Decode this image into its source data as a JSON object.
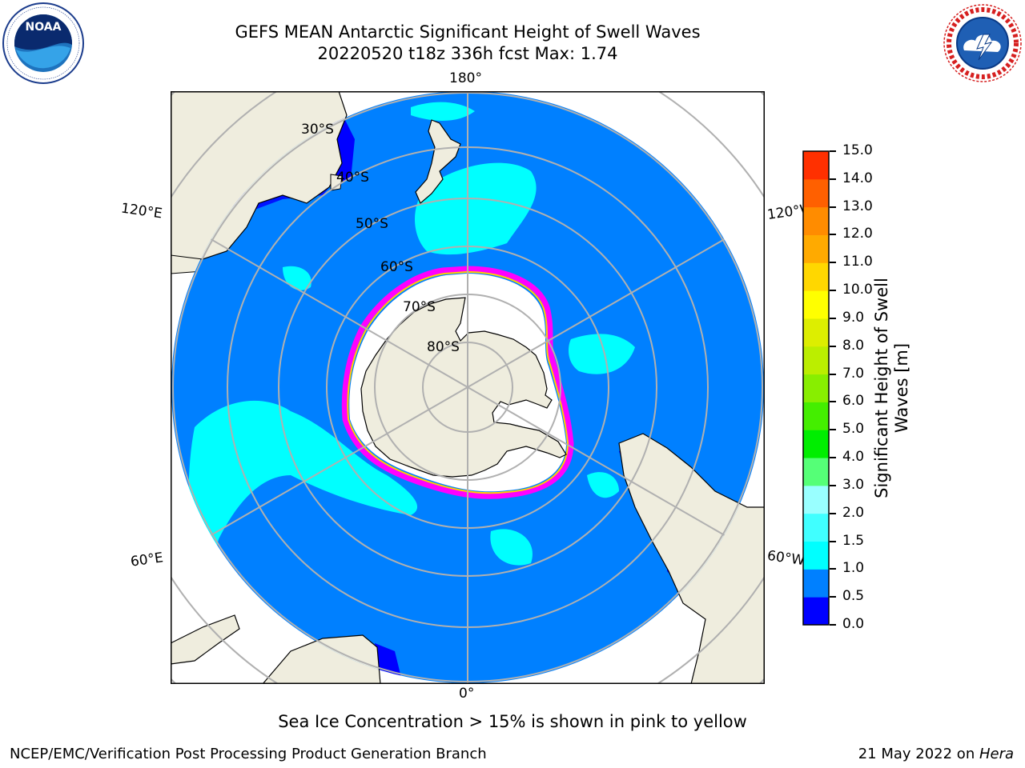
{
  "header": {
    "title_line1": "GEFS MEAN Antarctic Significant Height of Swell Waves",
    "title_line2": "20220520 t18z 336h fcst   Max: 1.74"
  },
  "logos": {
    "left": {
      "icon": "noaa-logo",
      "text": "NOAA",
      "ring_text": "NATIONAL OCEANIC AND ATMOSPHERIC ADMINISTRATION · U.S. DEPARTMENT OF COMMERCE"
    },
    "right": {
      "icon": "national-weather-service-logo",
      "ring_text": "NATIONAL WEATHER SERVICE"
    }
  },
  "map": {
    "projection": "south-polar-stereographic",
    "longitude_labels": {
      "top": "180°",
      "bottom": "0°",
      "upper_left": "120°E",
      "lower_left": "60°E",
      "upper_right": "120°W",
      "lower_right": "60°W"
    },
    "latitude_labels": [
      "30°S",
      "40°S",
      "50°S",
      "60°S",
      "70°S",
      "80°S"
    ],
    "colors": {
      "land": "#efedde",
      "ocean_base": "#0080ff",
      "swell_1_5": "#00ffff",
      "swell_0_5": "#0000ff",
      "sea_ice_edge": [
        "#ff00ff",
        "#ffa500",
        "#ffff00"
      ],
      "ice_interior": "#ffffff",
      "grid": "#b0b0b0"
    }
  },
  "colorbar": {
    "title": "Significant Height of Swell Waves [m]",
    "ticks": [
      "0.0",
      "0.5",
      "1.0",
      "1.5",
      "2.0",
      "3.0",
      "4.0",
      "5.0",
      "6.0",
      "7.0",
      "8.0",
      "9.0",
      "10.0",
      "11.0",
      "12.0",
      "13.0",
      "14.0",
      "15.0"
    ],
    "colors": [
      "#0000ff",
      "#0080ff",
      "#00ffff",
      "#40ffff",
      "#99ffff",
      "#55ff77",
      "#00ee00",
      "#44ee00",
      "#88ee00",
      "#bbee00",
      "#ddee00",
      "#ffff00",
      "#ffd700",
      "#ffaa00",
      "#ff8c00",
      "#ff6000",
      "#ff3000"
    ]
  },
  "caption": "Sea Ice Concentration > 15% is shown in pink to yellow",
  "footer": {
    "left": "NCEP/EMC/Verification Post Processing Product Generation Branch",
    "right_prefix": "21 May 2022 on ",
    "right_host": "Hera"
  }
}
